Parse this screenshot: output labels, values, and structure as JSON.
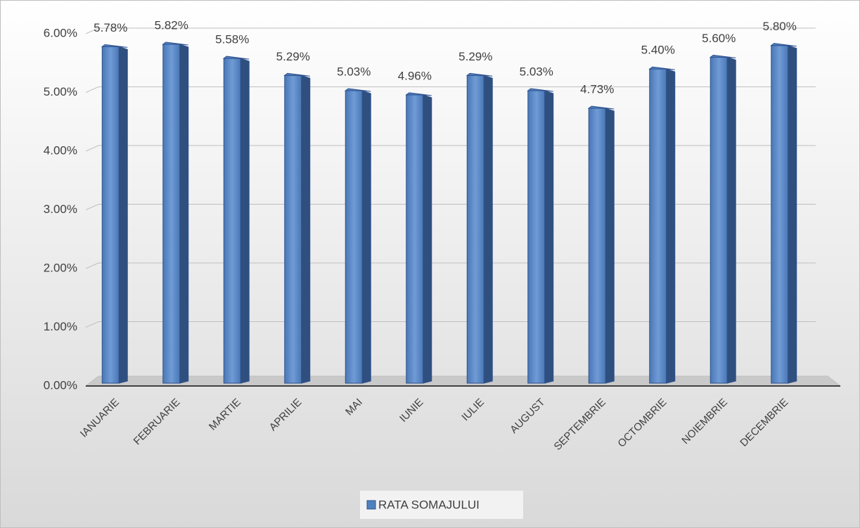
{
  "chart_data": {
    "type": "bar3d",
    "categories": [
      "IANUARIE",
      "FEBRUARIE",
      "MARTIE",
      "APRILIE",
      "MAI",
      "IUNIE",
      "IULIE",
      "AUGUST",
      "SEPTEMBRIE",
      "OCTOMBRIE",
      "NOIEMBRIE",
      "DECEMBRIE"
    ],
    "series": [
      {
        "name": "RATA SOMAJULUI",
        "color": "#4f81bd",
        "values": [
          5.78,
          5.82,
          5.58,
          5.29,
          5.03,
          4.96,
          5.29,
          5.03,
          4.73,
          5.4,
          5.6,
          5.8
        ],
        "value_labels": [
          "5.78%",
          "5.82%",
          "5.58%",
          "5.29%",
          "5.03%",
          "4.96%",
          "5.29%",
          "5.03%",
          "4.73%",
          "5.40%",
          "5.60%",
          "5.80%"
        ]
      }
    ],
    "ylim": [
      0,
      6
    ],
    "yticks": [
      {
        "value": 0,
        "label": "0.00%"
      },
      {
        "value": 1,
        "label": "1.00%"
      },
      {
        "value": 2,
        "label": "2.00%"
      },
      {
        "value": 3,
        "label": "3.00%"
      },
      {
        "value": 4,
        "label": "4.00%"
      },
      {
        "value": 5,
        "label": "5.00%"
      },
      {
        "value": 6,
        "label": "6.00%"
      }
    ],
    "grid": true,
    "legend": "bottom"
  }
}
